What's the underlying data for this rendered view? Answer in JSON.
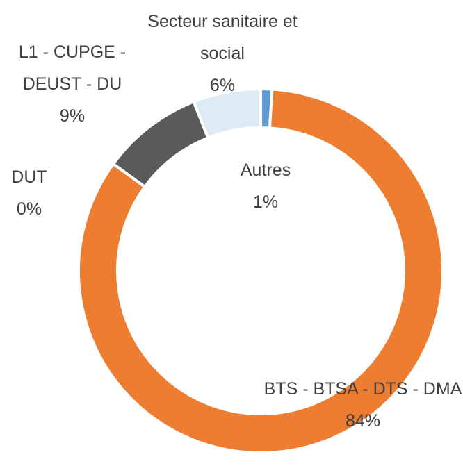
{
  "chart_data": {
    "type": "donut",
    "categories": [
      "Autres",
      "BTS - BTSA - DTS - DMA",
      "DUT",
      "L1 - CUPGE - DEUST - DU",
      "Secteur sanitaire et social"
    ],
    "values": [
      1,
      84,
      0,
      9,
      6
    ],
    "value_labels": [
      "1%",
      "84%",
      "0%",
      "9%",
      "6%"
    ],
    "colors": [
      "#5b9bd5",
      "#ed7d31",
      "#a5a5a5",
      "#5a5a5a",
      "#deebf7"
    ]
  }
}
